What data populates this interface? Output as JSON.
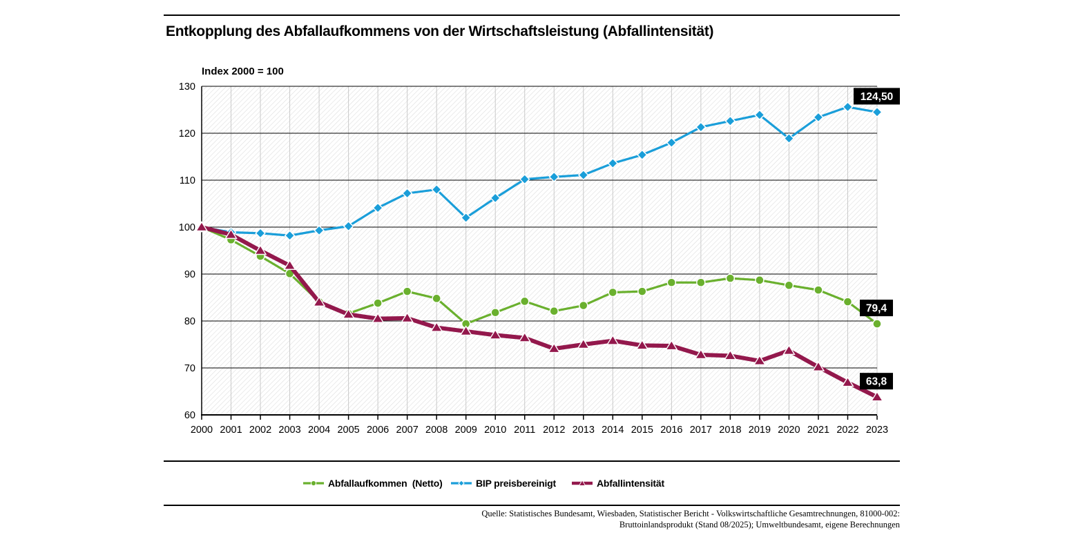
{
  "header": {
    "title": "Entkopplung des Abfallaufkommens von der Wirtschaftsleistung (Abfallintensität)"
  },
  "source": {
    "line1": "Quelle: Statistisches Bundesamt, Wiesbaden, Statistischer Bericht - Volkswirtschaftliche Gesamtrechnungen, 81000-002:",
    "line2": "Bruttoinlandsprodukt (Stand 08/2025); Umweltbundesamt, eigene Berechnungen"
  },
  "chart_data": {
    "type": "line",
    "title": "Entkopplung des Abfallaufkommens von der Wirtschaftsleistung (Abfallintensität)",
    "y_axis_note": "Index 2000 = 100",
    "xlabel": "",
    "ylabel": "Index 2000 = 100",
    "ylim": [
      60,
      130
    ],
    "yticks": [
      60,
      70,
      80,
      90,
      100,
      110,
      120,
      130
    ],
    "grid": "horizontal-black-vertical-gray-hatched-background",
    "legend_position": "bottom",
    "x": [
      2000,
      2001,
      2002,
      2003,
      2004,
      2005,
      2006,
      2007,
      2008,
      2009,
      2010,
      2011,
      2012,
      2013,
      2014,
      2015,
      2016,
      2017,
      2018,
      2019,
      2020,
      2021,
      2022,
      2023
    ],
    "series": [
      {
        "name": "Abfallaufkommen  (Netto)",
        "color": "#6ab02e",
        "marker": "circle",
        "line_width": 3.2,
        "end_label": "79,4",
        "values": [
          100,
          97.3,
          93.8,
          90.1,
          84.1,
          81.6,
          83.8,
          86.3,
          84.8,
          79.4,
          81.8,
          84.2,
          82.1,
          83.3,
          86.1,
          86.3,
          88.2,
          88.2,
          89.1,
          88.7,
          87.6,
          86.6,
          84.1,
          79.4
        ]
      },
      {
        "name": "BIP preisbereinigt",
        "color": "#1a9ed9",
        "marker": "diamond",
        "line_width": 3.2,
        "end_label": "124,50",
        "values": [
          100,
          98.9,
          98.7,
          98.2,
          99.3,
          100.2,
          104.1,
          107.2,
          108.0,
          102.0,
          106.2,
          110.2,
          110.7,
          111.1,
          113.6,
          115.4,
          118.0,
          121.3,
          122.6,
          123.9,
          118.9,
          123.4,
          125.6,
          124.5
        ]
      },
      {
        "name": "Abfallintensität",
        "color": "#93184c",
        "marker": "triangle",
        "line_width": 6,
        "end_label": "63,8",
        "values": [
          100,
          98.4,
          95.0,
          91.8,
          84.0,
          81.4,
          80.5,
          80.6,
          78.6,
          77.8,
          77.0,
          76.4,
          74.1,
          75.0,
          75.8,
          74.8,
          74.7,
          72.8,
          72.6,
          71.5,
          73.7,
          70.2,
          66.9,
          63.8
        ]
      }
    ],
    "annotations": [
      {
        "series": "BIP preisbereinigt",
        "text": "124,50"
      },
      {
        "series": "Abfallaufkommen  (Netto)",
        "text": "79,4"
      },
      {
        "series": "Abfallintensität",
        "text": "63,8"
      }
    ],
    "colors": {
      "hatch": "#dedede",
      "vertical_grid": "#c9c9c9",
      "horizontal_grid": "#000000",
      "axis": "#000000",
      "label_box_bg": "#000000",
      "label_box_text": "#ffffff"
    }
  }
}
